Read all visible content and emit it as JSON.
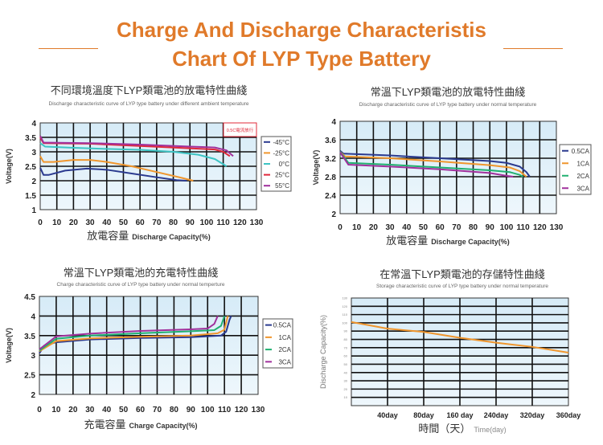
{
  "header": {
    "title_line1": "Charge And Discharge Characteristis",
    "title_line2": "Chart Of LYP Type Battery",
    "accent_color": "#e07a2a"
  },
  "chart_data": [
    {
      "type": "line",
      "title": "不同環境溫度下LYP類電池的放電特性曲綫",
      "subtitle": "Discharge characteristic curve of LYP type battery under different ambient temperature",
      "xlabel_cn": "放電容量",
      "xlabel": "Discharge Capacity(%)",
      "ylabel": "Voltage(V)",
      "note": "0.5C電流放行",
      "xlim": [
        0,
        130
      ],
      "ylim": [
        1,
        4
      ],
      "xticks": [
        "0",
        "10",
        "20",
        "30",
        "40",
        "50",
        "60",
        "70",
        "80",
        "90",
        "100",
        "110",
        "120",
        "130"
      ],
      "yticks": [
        "1",
        "1.5",
        "2",
        "2.5",
        "3",
        "3.5",
        "4"
      ],
      "grid": true,
      "legend": "right",
      "series": [
        {
          "name": "-45°C",
          "color": "#2b3a8f",
          "points": [
            [
              0,
              2.45
            ],
            [
              2,
              2.2
            ],
            [
              5,
              2.2
            ],
            [
              15,
              2.35
            ],
            [
              28,
              2.42
            ],
            [
              40,
              2.38
            ],
            [
              55,
              2.25
            ],
            [
              70,
              2.12
            ],
            [
              82,
              2.02
            ],
            [
              88,
              2.0
            ]
          ]
        },
        {
          "name": "-25°C",
          "color": "#f0962d",
          "points": [
            [
              0,
              2.85
            ],
            [
              2,
              2.65
            ],
            [
              8,
              2.65
            ],
            [
              20,
              2.72
            ],
            [
              30,
              2.72
            ],
            [
              40,
              2.65
            ],
            [
              55,
              2.5
            ],
            [
              70,
              2.3
            ],
            [
              85,
              2.1
            ],
            [
              92,
              2.0
            ]
          ]
        },
        {
          "name": "0°C",
          "color": "#3cc4c4",
          "points": [
            [
              0,
              3.3
            ],
            [
              3,
              3.18
            ],
            [
              20,
              3.14
            ],
            [
              40,
              3.1
            ],
            [
              60,
              3.07
            ],
            [
              80,
              3.0
            ],
            [
              95,
              2.9
            ],
            [
              105,
              2.75
            ],
            [
              112,
              2.5
            ]
          ]
        },
        {
          "name": "25°C",
          "color": "#e0283a",
          "points": [
            [
              0,
              3.5
            ],
            [
              2,
              3.3
            ],
            [
              30,
              3.28
            ],
            [
              60,
              3.2
            ],
            [
              90,
              3.12
            ],
            [
              105,
              3.08
            ],
            [
              110,
              3.0
            ],
            [
              114,
              2.85
            ]
          ]
        },
        {
          "name": "55°C",
          "color": "#a0309c",
          "points": [
            [
              0,
              3.55
            ],
            [
              2,
              3.32
            ],
            [
              30,
              3.3
            ],
            [
              60,
              3.25
            ],
            [
              90,
              3.18
            ],
            [
              105,
              3.15
            ],
            [
              112,
              3.05
            ],
            [
              116,
              2.85
            ]
          ]
        }
      ]
    },
    {
      "type": "line",
      "title": "常溫下LYP類電池的放電特性曲綫",
      "subtitle": "Discharge characteristic curve of LYP type battery under normal temperature",
      "xlabel_cn": "放電容量",
      "xlabel": "Discharge Capacity(%)",
      "ylabel": "Voltage(V)",
      "xlim": [
        0,
        130
      ],
      "ylim": [
        2,
        4
      ],
      "xticks": [
        "0",
        "10",
        "20",
        "30",
        "40",
        "50",
        "60",
        "70",
        "80",
        "90",
        "100",
        "110",
        "120",
        "130"
      ],
      "yticks": [
        "2",
        "2.4",
        "2.8",
        "3.2",
        "3.6",
        "4"
      ],
      "grid": true,
      "legend": "right",
      "series": [
        {
          "name": "0.5CA",
          "color": "#2b3a8f",
          "points": [
            [
              0,
              3.36
            ],
            [
              2,
              3.3
            ],
            [
              30,
              3.26
            ],
            [
              60,
              3.2
            ],
            [
              90,
              3.14
            ],
            [
              100,
              3.1
            ],
            [
              108,
              3.02
            ],
            [
              112,
              2.9
            ],
            [
              114,
              2.8
            ]
          ]
        },
        {
          "name": "1CA",
          "color": "#f0962d",
          "points": [
            [
              0,
              3.34
            ],
            [
              3,
              3.24
            ],
            [
              30,
              3.2
            ],
            [
              60,
              3.13
            ],
            [
              90,
              3.05
            ],
            [
              102,
              3.0
            ],
            [
              108,
              2.92
            ],
            [
              112,
              2.8
            ]
          ]
        },
        {
          "name": "2CA",
          "color": "#20b070",
          "points": [
            [
              0,
              3.34
            ],
            [
              5,
              3.1
            ],
            [
              30,
              3.06
            ],
            [
              60,
              3.0
            ],
            [
              90,
              2.94
            ],
            [
              102,
              2.9
            ],
            [
              108,
              2.84
            ],
            [
              110,
              2.8
            ]
          ]
        },
        {
          "name": "3CA",
          "color": "#a0309c",
          "points": [
            [
              0,
              3.33
            ],
            [
              5,
              3.06
            ],
            [
              30,
              3.02
            ],
            [
              60,
              2.96
            ],
            [
              90,
              2.88
            ],
            [
              100,
              2.82
            ],
            [
              104,
              2.8
            ]
          ]
        }
      ]
    },
    {
      "type": "line",
      "title": "常溫下LYP類電池的充電特性曲綫",
      "subtitle": "Charge characteristic curve of LYP type battery under normal temperture",
      "xlabel_cn": "充電容量",
      "xlabel": "Charge Capacity(%)",
      "ylabel": "Voltage(V)",
      "xlim": [
        0,
        130
      ],
      "ylim": [
        2,
        4.5
      ],
      "xticks": [
        "0",
        "10",
        "20",
        "30",
        "40",
        "50",
        "60",
        "70",
        "80",
        "90",
        "100",
        "110",
        "120",
        "130"
      ],
      "yticks": [
        "2",
        "2.5",
        "3",
        "3.5",
        "4",
        "4.5"
      ],
      "grid": true,
      "legend": "right",
      "series": [
        {
          "name": "0.5CA",
          "color": "#2b3a8f",
          "points": [
            [
              0,
              3.05
            ],
            [
              3,
              3.25
            ],
            [
              10,
              3.33
            ],
            [
              30,
              3.4
            ],
            [
              60,
              3.44
            ],
            [
              90,
              3.46
            ],
            [
              108,
              3.5
            ],
            [
              111,
              3.6
            ],
            [
              113,
              3.9
            ],
            [
              114,
              4.0
            ]
          ]
        },
        {
          "name": "1CA",
          "color": "#f0962d",
          "points": [
            [
              0,
              3.1
            ],
            [
              10,
              3.36
            ],
            [
              30,
              3.43
            ],
            [
              60,
              3.47
            ],
            [
              90,
              3.5
            ],
            [
              106,
              3.56
            ],
            [
              110,
              3.65
            ],
            [
              112,
              4.0
            ]
          ]
        },
        {
          "name": "2CA",
          "color": "#20b070",
          "points": [
            [
              0,
              3.12
            ],
            [
              10,
              3.42
            ],
            [
              30,
              3.5
            ],
            [
              60,
              3.56
            ],
            [
              90,
              3.61
            ],
            [
              104,
              3.64
            ],
            [
              108,
              3.75
            ],
            [
              110,
              4.0
            ]
          ]
        },
        {
          "name": "3CA",
          "color": "#a0309c",
          "points": [
            [
              0,
              3.15
            ],
            [
              10,
              3.48
            ],
            [
              30,
              3.55
            ],
            [
              60,
              3.62
            ],
            [
              90,
              3.66
            ],
            [
              100,
              3.68
            ],
            [
              104,
              3.8
            ],
            [
              106,
              4.0
            ]
          ]
        }
      ]
    },
    {
      "type": "line",
      "title": "在常溫下LYP類電池的存儲特性曲綫",
      "subtitle": "Storage characteristic curve of LYP type battery under normal temperature",
      "xlabel_cn": "時間（天）",
      "xlabel": "Time(day)",
      "ylabel": "Discharge Capacity(%)",
      "xlim": [
        0,
        6
      ],
      "ylim": [
        0,
        130
      ],
      "xticks": [
        "40day",
        "80day",
        "160 day",
        "240day",
        "320day",
        "360day"
      ],
      "yticks": [
        "10",
        "20",
        "30",
        "40",
        "50",
        "60",
        "70",
        "80",
        "90",
        "100",
        "110",
        "120",
        "130"
      ],
      "grid": true,
      "legend": "none",
      "series": [
        {
          "color": "#f0962d",
          "points": [
            [
              0,
              101
            ],
            [
              1,
              93
            ],
            [
              2,
              89
            ],
            [
              3,
              82
            ],
            [
              4,
              76
            ],
            [
              5,
              71
            ],
            [
              6,
              64
            ]
          ]
        }
      ]
    }
  ]
}
